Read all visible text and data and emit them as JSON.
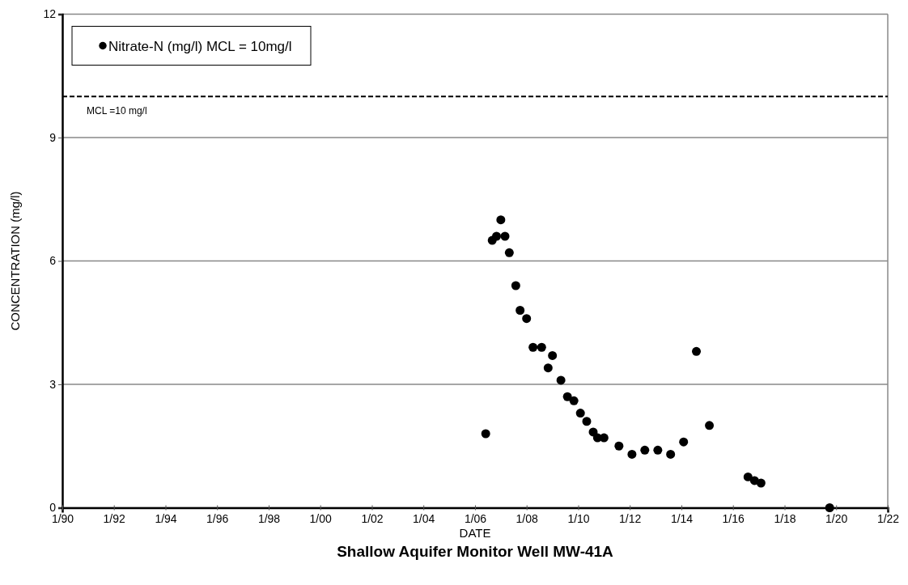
{
  "chart_data": {
    "type": "scatter",
    "title": "Shallow Aquifer Monitor Well MW-41A",
    "xlabel": "DATE",
    "ylabel": "CONCENTRATION  (mg/l)",
    "series": [
      {
        "name": "Nitrate-N (mg/l) MCL = 10mg/l",
        "color": "#000000",
        "marker": "circle",
        "x": [
          "2006-06",
          "2006-09",
          "2006-11",
          "2007-01",
          "2007-03",
          "2007-05",
          "2007-08",
          "2007-10",
          "2008-01",
          "2008-04",
          "2008-08",
          "2008-11",
          "2009-01",
          "2009-05",
          "2009-08",
          "2009-11",
          "2010-02",
          "2010-05",
          "2010-08",
          "2010-10",
          "2011-01",
          "2011-08",
          "2012-02",
          "2012-08",
          "2013-02",
          "2013-08",
          "2014-02",
          "2014-08",
          "2015-02",
          "2016-08",
          "2016-11",
          "2017-02",
          "2019-10"
        ],
        "values": [
          1.8,
          6.5,
          6.6,
          7.0,
          6.6,
          6.2,
          5.4,
          4.8,
          4.6,
          3.9,
          3.9,
          3.4,
          3.7,
          3.1,
          2.7,
          2.6,
          2.3,
          2.1,
          1.84,
          1.7,
          1.7,
          1.5,
          1.3,
          1.4,
          1.4,
          1.3,
          1.6,
          3.8,
          2.0,
          0.75,
          0.66,
          0.6,
          0.0
        ]
      }
    ],
    "xlim": [
      "1990-01",
      "2022-01"
    ],
    "xticks": [
      {
        "value": "1990-01",
        "label": "1/90"
      },
      {
        "value": "1992-01",
        "label": "1/92"
      },
      {
        "value": "1994-01",
        "label": "1/94"
      },
      {
        "value": "1996-01",
        "label": "1/96"
      },
      {
        "value": "1998-01",
        "label": "1/98"
      },
      {
        "value": "2000-01",
        "label": "1/00"
      },
      {
        "value": "2002-01",
        "label": "1/02"
      },
      {
        "value": "2004-01",
        "label": "1/04"
      },
      {
        "value": "2006-01",
        "label": "1/06"
      },
      {
        "value": "2008-01",
        "label": "1/08"
      },
      {
        "value": "2010-01",
        "label": "1/10"
      },
      {
        "value": "2012-01",
        "label": "1/12"
      },
      {
        "value": "2014-01",
        "label": "1/14"
      },
      {
        "value": "2016-01",
        "label": "1/16"
      },
      {
        "value": "2018-01",
        "label": "1/18"
      },
      {
        "value": "2020-01",
        "label": "1/20"
      },
      {
        "value": "2022-01",
        "label": "1/22"
      }
    ],
    "ylim": [
      0,
      12
    ],
    "yticks": [
      0,
      3,
      6,
      9,
      12
    ],
    "grid": "y",
    "legend": "top left",
    "ref_lines": [
      {
        "axis": "y",
        "value": 10,
        "label": "MCL =10 mg/l",
        "color": "#000000",
        "line_style": "dashed"
      }
    ]
  }
}
